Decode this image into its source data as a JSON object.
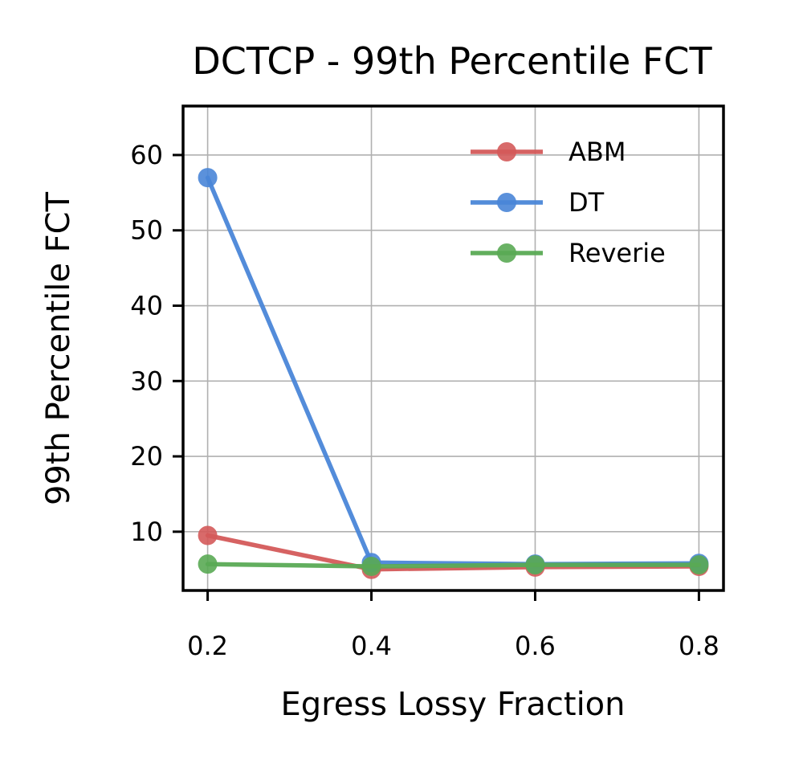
{
  "chart_data": {
    "type": "line",
    "title": "DCTCP - 99th Percentile FCT",
    "xlabel": "Egress Lossy Fraction",
    "ylabel": "99th Percentile FCT",
    "x": [
      0.2,
      0.4,
      0.6,
      0.8
    ],
    "x_ticks": [
      "0.2",
      "0.4",
      "0.6",
      "0.8"
    ],
    "y_ticks": [
      "10",
      "20",
      "30",
      "40",
      "50",
      "60"
    ],
    "xlim": [
      0.17,
      0.83
    ],
    "ylim": [
      2.2,
      66.5
    ],
    "grid": true,
    "legend_position": "top-right",
    "series": [
      {
        "name": "ABM",
        "color": "#d45a5a",
        "values": [
          9.5,
          5.0,
          5.3,
          5.4
        ]
      },
      {
        "name": "DT",
        "color": "#4a86d8",
        "values": [
          57.0,
          5.9,
          5.7,
          5.8
        ]
      },
      {
        "name": "Reverie",
        "color": "#5aaa55",
        "values": [
          5.7,
          5.4,
          5.6,
          5.6
        ]
      }
    ]
  }
}
